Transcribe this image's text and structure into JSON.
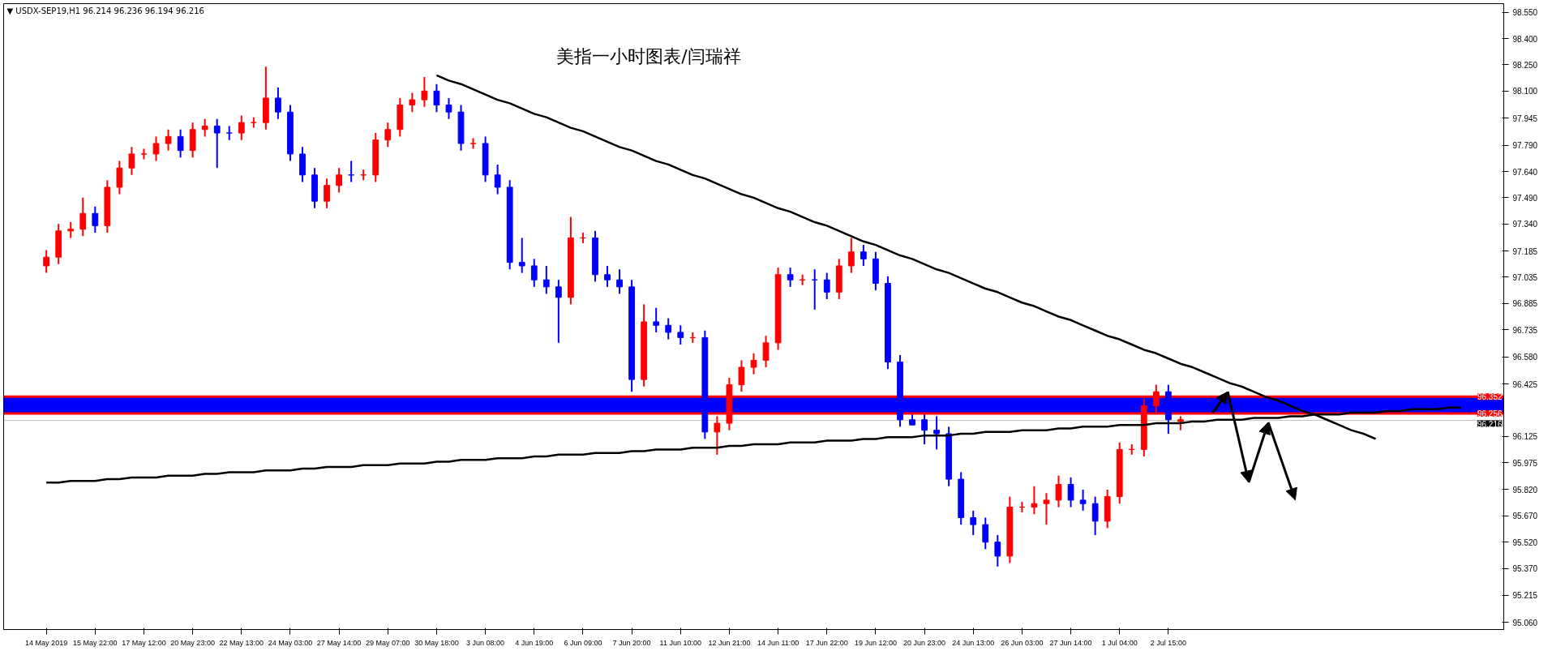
{
  "chart_data": {
    "type": "candlestick",
    "title": "美指一小时图表/闫瑞祥",
    "annotations": [
      "▼ USDX-SEP19,H1  96.214 96.236 96.194 96.216"
    ],
    "categories": [
      "14 May 2019",
      null,
      null,
      null,
      "15 May 22:00",
      null,
      null,
      null,
      "17 May 12:00",
      null,
      null,
      null,
      "20 May 23:00",
      null,
      null,
      null,
      "22 May 13:00",
      null,
      null,
      null,
      "24 May 03:00",
      null,
      null,
      null,
      "27 May 14:00",
      null,
      null,
      null,
      "29 May 07:00",
      null,
      null,
      null,
      "30 May 18:00",
      null,
      null,
      null,
      "3 Jun 08:00",
      null,
      null,
      null,
      "4 Jun 19:00",
      null,
      null,
      null,
      "6 Jun 09:00",
      null,
      null,
      null,
      "7 Jun 20:00",
      null,
      null,
      null,
      "11 Jun 10:00",
      null,
      null,
      null,
      "12 Jun 21:00",
      null,
      null,
      null,
      "14 Jun 11:00",
      null,
      null,
      null,
      "17 Jun 22:00",
      null,
      null,
      null,
      "19 Jun 12:00",
      null,
      null,
      null,
      "20 Jun 23:00",
      null,
      null,
      null,
      "24 Jun 13:00",
      null,
      null,
      null,
      "26 Jun 03:00",
      null,
      null,
      null,
      "27 Jun 14:00",
      null,
      null,
      null,
      "1 Jul 04:00",
      null,
      null,
      null,
      "2 Jul 15:00",
      null,
      null,
      null,
      null,
      null,
      null,
      null,
      null,
      null,
      null,
      null,
      null,
      null,
      null,
      null,
      null,
      null,
      null,
      null,
      null,
      null,
      null,
      null,
      null
    ],
    "ohlc": [
      [
        97.1,
        97.19,
        97.06,
        97.15
      ],
      [
        97.15,
        97.34,
        97.11,
        97.3
      ],
      [
        97.3,
        97.35,
        97.26,
        97.31
      ],
      [
        97.31,
        97.49,
        97.27,
        97.4
      ],
      [
        97.4,
        97.44,
        97.29,
        97.33
      ],
      [
        97.33,
        97.59,
        97.29,
        97.55
      ],
      [
        97.55,
        97.7,
        97.51,
        97.66
      ],
      [
        97.66,
        97.78,
        97.62,
        97.74
      ],
      [
        97.74,
        97.77,
        97.71,
        97.74
      ],
      [
        97.74,
        97.84,
        97.7,
        97.8
      ],
      [
        97.8,
        97.88,
        97.76,
        97.84
      ],
      [
        97.84,
        97.88,
        97.72,
        97.76
      ],
      [
        97.76,
        97.92,
        97.72,
        97.88
      ],
      [
        97.88,
        97.94,
        97.84,
        97.9
      ],
      [
        97.9,
        97.94,
        97.66,
        97.86
      ],
      [
        97.86,
        97.9,
        97.82,
        97.86
      ],
      [
        97.86,
        97.96,
        97.82,
        97.92
      ],
      [
        97.92,
        97.95,
        97.89,
        97.92
      ],
      [
        97.92,
        98.24,
        97.88,
        98.06
      ],
      [
        98.06,
        98.12,
        97.94,
        97.98
      ],
      [
        97.98,
        98.02,
        97.7,
        97.74
      ],
      [
        97.74,
        97.78,
        97.58,
        97.62
      ],
      [
        97.62,
        97.66,
        97.43,
        97.47
      ],
      [
        97.47,
        97.6,
        97.43,
        97.56
      ],
      [
        97.56,
        97.66,
        97.52,
        97.62
      ],
      [
        97.62,
        97.7,
        97.58,
        97.62
      ],
      [
        97.62,
        97.65,
        97.59,
        97.62
      ],
      [
        97.62,
        97.86,
        97.58,
        97.82
      ],
      [
        97.82,
        97.92,
        97.78,
        97.88
      ],
      [
        97.88,
        98.06,
        97.84,
        98.02
      ],
      [
        98.02,
        98.09,
        97.98,
        98.05
      ],
      [
        98.05,
        98.18,
        98.01,
        98.1
      ],
      [
        98.1,
        98.14,
        97.98,
        98.02
      ],
      [
        98.02,
        98.06,
        97.94,
        97.98
      ],
      [
        97.98,
        98.02,
        97.76,
        97.8
      ],
      [
        97.8,
        97.83,
        97.77,
        97.8
      ],
      [
        97.8,
        97.84,
        97.58,
        97.62
      ],
      [
        97.62,
        97.68,
        97.51,
        97.55
      ],
      [
        97.55,
        97.59,
        97.08,
        97.12
      ],
      [
        97.12,
        97.26,
        97.06,
        97.1
      ],
      [
        97.1,
        97.14,
        96.98,
        97.02
      ],
      [
        97.02,
        97.1,
        96.94,
        96.98
      ],
      [
        96.98,
        97.02,
        96.66,
        96.92
      ],
      [
        96.92,
        97.38,
        96.88,
        97.26
      ],
      [
        97.26,
        97.29,
        97.23,
        97.26
      ],
      [
        97.26,
        97.3,
        97.01,
        97.05
      ],
      [
        97.05,
        97.1,
        96.98,
        97.02
      ],
      [
        97.02,
        97.08,
        96.94,
        96.98
      ],
      [
        96.98,
        97.02,
        96.38,
        96.45
      ],
      [
        96.45,
        96.88,
        96.41,
        96.78
      ],
      [
        96.78,
        96.86,
        96.72,
        96.76
      ],
      [
        96.76,
        96.8,
        96.68,
        96.72
      ],
      [
        96.72,
        96.76,
        96.65,
        96.69
      ],
      [
        96.69,
        96.72,
        96.66,
        96.69
      ],
      [
        96.69,
        96.73,
        96.11,
        96.15
      ],
      [
        96.15,
        96.24,
        96.02,
        96.2
      ],
      [
        96.2,
        96.46,
        96.16,
        96.42
      ],
      [
        96.42,
        96.56,
        96.38,
        96.52
      ],
      [
        96.52,
        96.6,
        96.48,
        96.56
      ],
      [
        96.56,
        96.7,
        96.52,
        96.66
      ],
      [
        96.66,
        97.09,
        96.62,
        97.05
      ],
      [
        97.05,
        97.09,
        96.98,
        97.02
      ],
      [
        97.02,
        97.05,
        96.99,
        97.02
      ],
      [
        97.02,
        97.08,
        96.85,
        97.02
      ],
      [
        97.02,
        97.06,
        96.91,
        96.95
      ],
      [
        96.95,
        97.14,
        96.91,
        97.1
      ],
      [
        97.1,
        97.26,
        97.06,
        97.18
      ],
      [
        97.18,
        97.22,
        97.1,
        97.14
      ],
      [
        97.14,
        97.18,
        96.96,
        97.0
      ],
      [
        97.0,
        97.04,
        96.51,
        96.55
      ],
      [
        96.55,
        96.59,
        96.18,
        96.22
      ],
      [
        96.22,
        96.25,
        96.19,
        96.19
      ],
      [
        96.22,
        96.25,
        96.08,
        96.16
      ],
      [
        96.16,
        96.24,
        96.05,
        96.14
      ],
      [
        96.14,
        96.18,
        95.84,
        95.88
      ],
      [
        95.88,
        95.92,
        95.62,
        95.66
      ],
      [
        95.66,
        95.7,
        95.56,
        95.62
      ],
      [
        95.62,
        95.66,
        95.48,
        95.52
      ],
      [
        95.52,
        95.56,
        95.38,
        95.44
      ],
      [
        95.44,
        95.78,
        95.4,
        95.72
      ],
      [
        95.72,
        95.75,
        95.69,
        95.72
      ],
      [
        95.72,
        95.84,
        95.68,
        95.74
      ],
      [
        95.74,
        95.8,
        95.62,
        95.76
      ],
      [
        95.76,
        95.9,
        95.72,
        95.85
      ],
      [
        95.85,
        95.89,
        95.72,
        95.76
      ],
      [
        95.76,
        95.82,
        95.7,
        95.74
      ],
      [
        95.74,
        95.78,
        95.56,
        95.64
      ],
      [
        95.64,
        95.82,
        95.6,
        95.78
      ],
      [
        95.78,
        96.09,
        95.74,
        96.05
      ],
      [
        96.05,
        96.08,
        96.02,
        96.05
      ],
      [
        96.05,
        96.34,
        96.01,
        96.3
      ],
      [
        96.3,
        96.42,
        96.26,
        96.38
      ],
      [
        96.38,
        96.42,
        96.14,
        96.22
      ],
      [
        96.21,
        96.24,
        96.16,
        96.22
      ],
      null,
      null,
      null,
      null,
      null,
      null,
      null,
      null,
      null,
      null,
      null,
      null,
      null,
      null,
      null,
      null,
      null,
      null,
      null,
      null,
      null,
      null,
      null
    ],
    "colors": [
      "#ff0000",
      "#ff0000",
      "#ff0000",
      "#ff0000",
      "#0000ff",
      "#ff0000",
      "#ff0000",
      "#ff0000",
      "#ff0000",
      "#ff0000",
      "#ff0000",
      "#0000ff",
      "#ff0000",
      "#ff0000",
      "#0000ff",
      "#0000ff",
      "#ff0000",
      "#ff0000",
      "#ff0000",
      "#0000ff",
      "#0000ff",
      "#0000ff",
      "#0000ff",
      "#ff0000",
      "#ff0000",
      "#0000ff",
      "#ff0000",
      "#ff0000",
      "#ff0000",
      "#ff0000",
      "#ff0000",
      "#ff0000",
      "#0000ff",
      "#0000ff",
      "#0000ff",
      "#ff0000",
      "#0000ff",
      "#0000ff",
      "#0000ff",
      "#0000ff",
      "#0000ff",
      "#0000ff",
      "#0000ff",
      "#ff0000",
      "#ff0000",
      "#0000ff",
      "#0000ff",
      "#0000ff",
      "#0000ff",
      "#ff0000",
      "#0000ff",
      "#0000ff",
      "#0000ff",
      "#ff0000",
      "#0000ff",
      "#ff0000",
      "#ff0000",
      "#ff0000",
      "#ff0000",
      "#ff0000",
      "#ff0000",
      "#0000ff",
      "#ff0000",
      "#0000ff",
      "#0000ff",
      "#ff0000",
      "#ff0000",
      "#0000ff",
      "#0000ff",
      "#0000ff",
      "#0000ff",
      "#0000ff",
      "#0000ff",
      "#0000ff",
      "#0000ff",
      "#0000ff",
      "#0000ff",
      "#0000ff",
      "#0000ff",
      "#ff0000",
      "#ff0000",
      "#ff0000",
      "#ff0000",
      "#ff0000",
      "#0000ff",
      "#0000ff",
      "#0000ff",
      "#ff0000",
      "#ff0000",
      "#ff0000",
      "#ff0000",
      "#ff0000",
      "#0000ff",
      "#ff0000",
      null,
      null,
      null,
      null,
      null,
      null,
      null,
      null,
      null,
      null,
      null,
      null,
      null,
      null,
      null,
      null,
      null,
      null,
      null,
      null,
      null,
      null,
      null
    ],
    "series": [
      {
        "type": "line",
        "color": "#000000",
        "values": [
          null,
          null,
          null,
          null,
          null,
          null,
          null,
          null,
          null,
          null,
          null,
          null,
          null,
          null,
          null,
          null,
          null,
          null,
          null,
          null,
          null,
          null,
          null,
          null,
          null,
          null,
          null,
          null,
          null,
          null,
          null,
          null,
          98.19,
          98.16,
          98.14,
          98.11,
          98.08,
          98.05,
          98.03,
          98.0,
          97.97,
          97.95,
          97.92,
          97.89,
          97.87,
          97.84,
          97.81,
          97.78,
          97.76,
          97.73,
          97.7,
          97.68,
          97.65,
          97.62,
          97.6,
          97.57,
          97.54,
          97.51,
          97.49,
          97.46,
          97.43,
          97.41,
          97.38,
          97.35,
          97.33,
          97.3,
          97.27,
          97.24,
          97.22,
          97.19,
          97.16,
          97.14,
          97.11,
          97.08,
          97.06,
          97.03,
          97.0,
          96.97,
          96.95,
          96.92,
          96.89,
          96.87,
          96.84,
          96.81,
          96.79,
          96.76,
          96.73,
          96.7,
          96.68,
          96.65,
          96.62,
          96.6,
          96.57,
          96.54,
          96.52,
          96.49,
          96.46,
          96.43,
          96.41,
          96.38,
          96.35,
          96.33,
          96.3,
          96.27,
          96.25,
          96.22,
          96.19,
          96.16,
          96.14,
          96.11,
          null,
          null,
          null,
          null,
          null,
          null,
          null
        ]
      },
      {
        "type": "line",
        "color": "#000000",
        "values": [
          95.86,
          95.86,
          95.87,
          95.87,
          95.87,
          95.88,
          95.88,
          95.89,
          95.89,
          95.89,
          95.9,
          95.9,
          95.9,
          95.91,
          95.91,
          95.92,
          95.92,
          95.92,
          95.93,
          95.93,
          95.93,
          95.94,
          95.94,
          95.95,
          95.95,
          95.95,
          95.96,
          95.96,
          95.96,
          95.97,
          95.97,
          95.97,
          95.98,
          95.98,
          95.99,
          95.99,
          95.99,
          96.0,
          96.0,
          96.0,
          96.01,
          96.01,
          96.02,
          96.02,
          96.02,
          96.03,
          96.03,
          96.03,
          96.04,
          96.04,
          96.05,
          96.05,
          96.05,
          96.06,
          96.06,
          96.06,
          96.07,
          96.07,
          96.08,
          96.08,
          96.08,
          96.09,
          96.09,
          96.09,
          96.1,
          96.1,
          96.1,
          96.11,
          96.11,
          96.12,
          96.12,
          96.12,
          96.13,
          96.13,
          96.13,
          96.14,
          96.14,
          96.15,
          96.15,
          96.15,
          96.16,
          96.16,
          96.16,
          96.17,
          96.17,
          96.18,
          96.18,
          96.18,
          96.19,
          96.19,
          96.19,
          96.2,
          96.2,
          96.2,
          96.21,
          96.21,
          96.22,
          96.22,
          96.22,
          96.23,
          96.23,
          96.23,
          96.24,
          96.24,
          96.25,
          96.25,
          96.25,
          96.26,
          96.26,
          96.26,
          96.27,
          96.27,
          96.28,
          96.28,
          96.28,
          96.29,
          96.29
        ]
      }
    ],
    "bands": [
      {
        "axis": "y",
        "from": 96.256,
        "to": 96.352,
        "color": "#0000ff"
      }
    ],
    "ref_lines": [
      {
        "axis": "y",
        "value": 96.352,
        "label": "96.352",
        "color": "#ff0000"
      },
      {
        "axis": "y",
        "value": 96.256,
        "label": "96.256",
        "color": "#ff0000"
      },
      {
        "axis": "y",
        "value": 96.216,
        "label": "96.216",
        "color": "#c0c0c0"
      }
    ],
    "ylim": [
      95.02,
      98.6
    ],
    "yticks": [
      {
        "value": 98.55,
        "label": "98.550"
      },
      {
        "value": 98.4,
        "label": "98.400"
      },
      {
        "value": 98.25,
        "label": "98.250"
      },
      {
        "value": 98.1,
        "label": "98.100"
      },
      {
        "value": 97.945,
        "label": "97.945"
      },
      {
        "value": 97.79,
        "label": "97.790"
      },
      {
        "value": 97.64,
        "label": "97.640"
      },
      {
        "value": 97.49,
        "label": "97.490"
      },
      {
        "value": 97.34,
        "label": "97.340"
      },
      {
        "value": 97.185,
        "label": "97.185"
      },
      {
        "value": 97.035,
        "label": "97.035"
      },
      {
        "value": 96.885,
        "label": "96.885"
      },
      {
        "value": 96.735,
        "label": "96.735"
      },
      {
        "value": 96.58,
        "label": "96.580"
      },
      {
        "value": 96.425,
        "label": "96.425"
      },
      {
        "value": 96.125,
        "label": "96.125"
      },
      {
        "value": 95.975,
        "label": "95.975"
      },
      {
        "value": 95.82,
        "label": "95.820"
      },
      {
        "value": 95.67,
        "label": "95.670"
      },
      {
        "value": 95.52,
        "label": "95.520"
      },
      {
        "value": 95.37,
        "label": "95.370"
      },
      {
        "value": 95.215,
        "label": "95.215"
      },
      {
        "value": 95.06,
        "label": "95.060"
      }
    ],
    "grid": false
  }
}
